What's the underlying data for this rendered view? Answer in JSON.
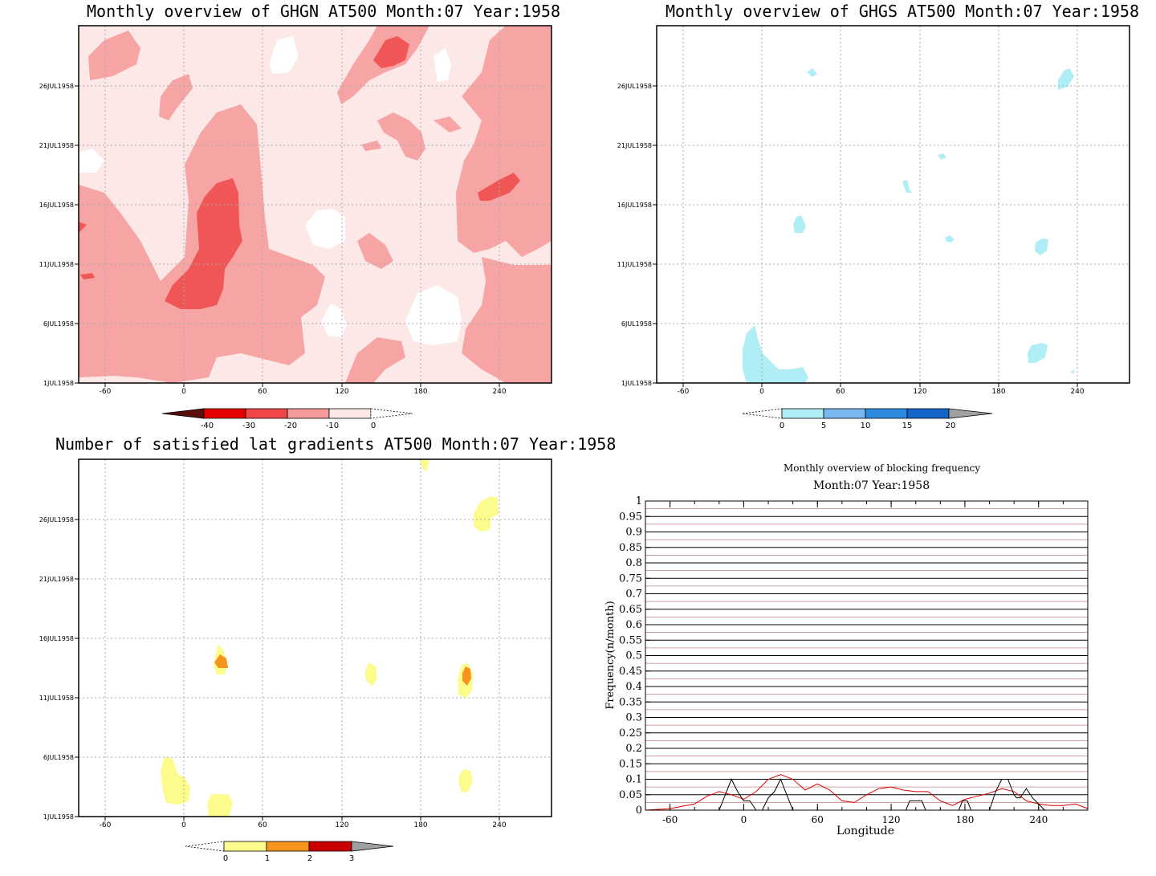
{
  "panels": {
    "ghgn": {
      "title": "Monthly overview of GHGN AT500 Month:07 Year:1958",
      "x_ticks": [
        "-60",
        "0",
        "60",
        "120",
        "180",
        "240"
      ],
      "y_ticks": [
        "1JUL1958",
        "6JUL1958",
        "11JUL1958",
        "16JUL1958",
        "21JUL1958",
        "26JUL1958"
      ],
      "colorbar": {
        "labels": [
          "-40",
          "-30",
          "-20",
          "-10",
          "0"
        ],
        "colors": [
          "#5a0e0e",
          "#e60000",
          "#f04848",
          "#f59a9a",
          "#fde8e8"
        ]
      }
    },
    "ghgs": {
      "title": "Monthly overview of GHGS AT500 Month:07 Year:1958",
      "x_ticks": [
        "-60",
        "0",
        "60",
        "120",
        "180",
        "240"
      ],
      "y_ticks": [
        "1JUL1958",
        "6JUL1958",
        "11JUL1958",
        "16JUL1958",
        "21JUL1958",
        "26JUL1958"
      ],
      "colorbar": {
        "labels": [
          "0",
          "5",
          "10",
          "15",
          "20"
        ],
        "colors": [
          "#b0eef5",
          "#7ab8f0",
          "#2d8be0",
          "#1565c8",
          "#a0a0a0"
        ]
      }
    },
    "lat": {
      "title": "Number of satisfied lat gradients AT500 Month:07 Year:1958",
      "x_ticks": [
        "-60",
        "0",
        "60",
        "120",
        "180",
        "240"
      ],
      "y_ticks": [
        "1JUL1958",
        "6JUL1958",
        "11JUL1958",
        "16JUL1958",
        "21JUL1958",
        "26JUL1958"
      ],
      "colorbar": {
        "labels": [
          "0",
          "1",
          "2",
          "3"
        ],
        "colors": [
          "#fcfc8c",
          "#f5941e",
          "#c80000",
          "#a0a0a0"
        ]
      }
    },
    "freq": {
      "title": "Monthly overview of blocking frequency",
      "subtitle": "Month:07 Year:1958",
      "xlabel": "Longitude",
      "ylabel": "Frequency(n/month)",
      "x_ticks": [
        "-60",
        "0",
        "60",
        "120",
        "180",
        "240"
      ],
      "y_ticks": [
        "0",
        "0.05",
        "0.1",
        "0.15",
        "0.2",
        "0.25",
        "0.3",
        "0.35",
        "0.4",
        "0.45",
        "0.5",
        "0.55",
        "0.6",
        "0.65",
        "0.7",
        "0.75",
        "0.8",
        "0.85",
        "0.9",
        "0.95",
        "1"
      ]
    }
  },
  "chart_data": [
    {
      "type": "heatmap",
      "title": "Monthly overview of GHGN AT500 Month:07 Year:1958",
      "xlim": [
        -80,
        280
      ],
      "ylim": [
        "1JUL1958",
        "31JUL1958"
      ],
      "color_levels": [
        -40,
        -30,
        -20,
        -10,
        0
      ],
      "grid": true
    },
    {
      "type": "heatmap",
      "title": "Monthly overview of GHGS AT500 Month:07 Year:1958",
      "xlim": [
        -80,
        280
      ],
      "ylim": [
        "1JUL1958",
        "31JUL1958"
      ],
      "color_levels": [
        0,
        5,
        10,
        15,
        20
      ],
      "grid": true
    },
    {
      "type": "heatmap",
      "title": "Number of satisfied lat gradients AT500 Month:07 Year:1958",
      "xlim": [
        -80,
        280
      ],
      "ylim": [
        "1JUL1958",
        "31JUL1958"
      ],
      "color_levels": [
        0,
        1,
        2,
        3
      ],
      "grid": true
    },
    {
      "type": "line",
      "title": "Monthly overview of blocking frequency",
      "subtitle": "Month:07 Year:1958",
      "xlabel": "Longitude",
      "ylabel": "Frequency(n/month)",
      "xlim": [
        -80,
        280
      ],
      "ylim": [
        0,
        1
      ],
      "series": [
        {
          "color": "#e00000",
          "x": [
            -80,
            -60,
            -40,
            -30,
            -20,
            -10,
            0,
            10,
            20,
            30,
            40,
            50,
            60,
            70,
            80,
            90,
            100,
            110,
            120,
            130,
            140,
            150,
            160,
            170,
            180,
            190,
            200,
            210,
            220,
            230,
            240,
            250,
            260,
            270,
            280
          ],
          "values": [
            0.0,
            0.005,
            0.02,
            0.045,
            0.06,
            0.05,
            0.035,
            0.06,
            0.1,
            0.115,
            0.1,
            0.065,
            0.085,
            0.065,
            0.03,
            0.025,
            0.05,
            0.07,
            0.075,
            0.065,
            0.06,
            0.06,
            0.03,
            0.015,
            0.035,
            0.045,
            0.055,
            0.07,
            0.06,
            0.03,
            0.02,
            0.015,
            0.015,
            0.02,
            0.005
          ]
        },
        {
          "color": "#000000",
          "x": [
            -80,
            -20,
            -15,
            -10,
            -5,
            0,
            5,
            10,
            15,
            20,
            25,
            30,
            35,
            40,
            80,
            132,
            135,
            140,
            145,
            148,
            175,
            178,
            180,
            182,
            185,
            200,
            205,
            210,
            215,
            220,
            222,
            225,
            230,
            235,
            240,
            245,
            280
          ],
          "values": [
            0,
            0,
            0.05,
            0.1,
            0.06,
            0.03,
            0.03,
            0,
            0,
            0.04,
            0.06,
            0.1,
            0.05,
            0,
            0,
            0,
            0.03,
            0.03,
            0.03,
            0,
            0,
            0.03,
            0.03,
            0.03,
            0,
            0,
            0.06,
            0.1,
            0.1,
            0.05,
            0.04,
            0.04,
            0.07,
            0.04,
            0.02,
            0,
            0
          ]
        }
      ]
    }
  ]
}
